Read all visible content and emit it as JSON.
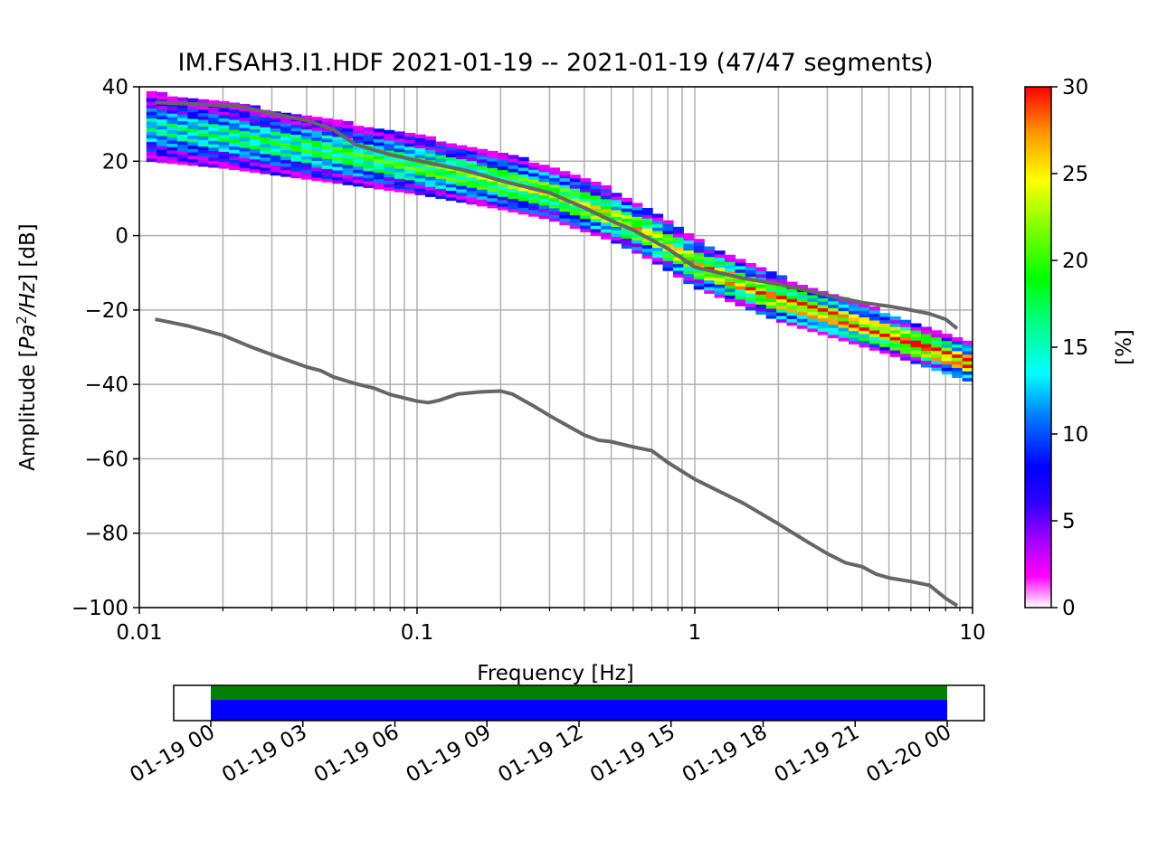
{
  "chart_data": [
    {
      "type": "heatmap",
      "title": "IM.FSAH3.I1.HDF   2021-01-19 -- 2021-01-19  (47/47 segments)",
      "xlabel": "Frequency [Hz]",
      "ylabel_main": "Amplitude [",
      "ylabel_pa": "Pa",
      "ylabel_sup": "2",
      "ylabel_hz": "/Hz",
      "ylabel_tail": "] [dB]",
      "xscale": "log",
      "xlim": [
        0.01,
        10
      ],
      "ylim": [
        -100,
        40
      ],
      "grid": true,
      "x_ticks": [
        {
          "value": 0.01,
          "label": "0.01"
        },
        {
          "value": 0.1,
          "label": "0.1"
        },
        {
          "value": 1,
          "label": "1"
        },
        {
          "value": 10,
          "label": "10"
        }
      ],
      "y_ticks": [
        {
          "value": 40,
          "label": "40"
        },
        {
          "value": 20,
          "label": "20"
        },
        {
          "value": 0,
          "label": "0"
        },
        {
          "value": -20,
          "label": "−20"
        },
        {
          "value": -40,
          "label": "−40"
        },
        {
          "value": -60,
          "label": "−60"
        },
        {
          "value": -80,
          "label": "−80"
        },
        {
          "value": -100,
          "label": "−100"
        }
      ],
      "colorbar": {
        "label": "[%]",
        "range": [
          0,
          30
        ],
        "ticks": [
          {
            "value": 0,
            "label": "0"
          },
          {
            "value": 5,
            "label": "5"
          },
          {
            "value": 10,
            "label": "10"
          },
          {
            "value": 15,
            "label": "15"
          },
          {
            "value": 20,
            "label": "20"
          },
          {
            "value": 25,
            "label": "25"
          },
          {
            "value": 30,
            "label": "30"
          }
        ]
      },
      "density_center": [
        [
          0.01,
          29
        ],
        [
          0.02,
          26.5
        ],
        [
          0.05,
          22
        ],
        [
          0.1,
          18.5
        ],
        [
          0.2,
          14
        ],
        [
          0.3,
          11
        ],
        [
          0.5,
          5
        ],
        [
          0.7,
          -0.5
        ],
        [
          1,
          -8
        ],
        [
          2,
          -17.5
        ],
        [
          5,
          -27
        ],
        [
          10,
          -35
        ]
      ],
      "reference_lines": [
        {
          "values": [
            [
              0.0114,
              35.8
            ],
            [
              0.02,
              35
            ],
            [
              0.023,
              34.8
            ],
            [
              0.03,
              32.8
            ],
            [
              0.04,
              31
            ],
            [
              0.05,
              28.5
            ],
            [
              0.06,
              24.5
            ],
            [
              0.08,
              21.8
            ],
            [
              0.1,
              20.2
            ],
            [
              0.15,
              17.5
            ],
            [
              0.2,
              14.8
            ],
            [
              0.3,
              11.5
            ],
            [
              0.4,
              7.5
            ],
            [
              0.5,
              4
            ],
            [
              0.6,
              1.5
            ],
            [
              0.7,
              -1.2
            ],
            [
              0.8,
              -3.5
            ],
            [
              1,
              -8.5
            ],
            [
              1.5,
              -11.5
            ],
            [
              2,
              -13
            ],
            [
              3,
              -16
            ],
            [
              4,
              -18
            ],
            [
              5,
              -19
            ],
            [
              6,
              -20
            ],
            [
              7,
              -21
            ],
            [
              8,
              -22.5
            ],
            [
              8.8,
              -25
            ]
          ]
        },
        {
          "values": [
            [
              0.0114,
              -22.5
            ],
            [
              0.015,
              -24.3
            ],
            [
              0.02,
              -26.8
            ],
            [
              0.025,
              -29.8
            ],
            [
              0.03,
              -32
            ],
            [
              0.04,
              -35.3
            ],
            [
              0.045,
              -36.3
            ],
            [
              0.05,
              -38
            ],
            [
              0.06,
              -39.8
            ],
            [
              0.07,
              -41
            ],
            [
              0.08,
              -42.7
            ],
            [
              0.1,
              -44.5
            ],
            [
              0.11,
              -44.9
            ],
            [
              0.12,
              -44.3
            ],
            [
              0.14,
              -42.6
            ],
            [
              0.17,
              -42
            ],
            [
              0.2,
              -41.8
            ],
            [
              0.22,
              -42.6
            ],
            [
              0.26,
              -45.6
            ],
            [
              0.3,
              -48.4
            ],
            [
              0.35,
              -51.2
            ],
            [
              0.4,
              -53.6
            ],
            [
              0.45,
              -55
            ],
            [
              0.5,
              -55.4
            ],
            [
              0.6,
              -56.8
            ],
            [
              0.7,
              -57.8
            ],
            [
              0.8,
              -61
            ],
            [
              1,
              -65.5
            ],
            [
              1.5,
              -72
            ],
            [
              2,
              -77.5
            ],
            [
              2.5,
              -82
            ],
            [
              3,
              -85.5
            ],
            [
              3.5,
              -88
            ],
            [
              4,
              -89
            ],
            [
              4.5,
              -91
            ],
            [
              5,
              -92
            ],
            [
              6,
              -93
            ],
            [
              7,
              -94
            ],
            [
              8,
              -97.5
            ],
            [
              8.8,
              -99.5
            ]
          ]
        }
      ]
    },
    {
      "type": "timeline",
      "x_ticks": [
        "01-19 00",
        "01-19 03",
        "01-19 06",
        "01-19 09",
        "01-19 12",
        "01-19 15",
        "01-19 18",
        "01-19 21",
        "01-20 00"
      ],
      "bar_start": "01-19 00",
      "bar_end": "01-20 00",
      "colors": {
        "top": "#008000",
        "bottom": "#0000ff"
      }
    }
  ]
}
